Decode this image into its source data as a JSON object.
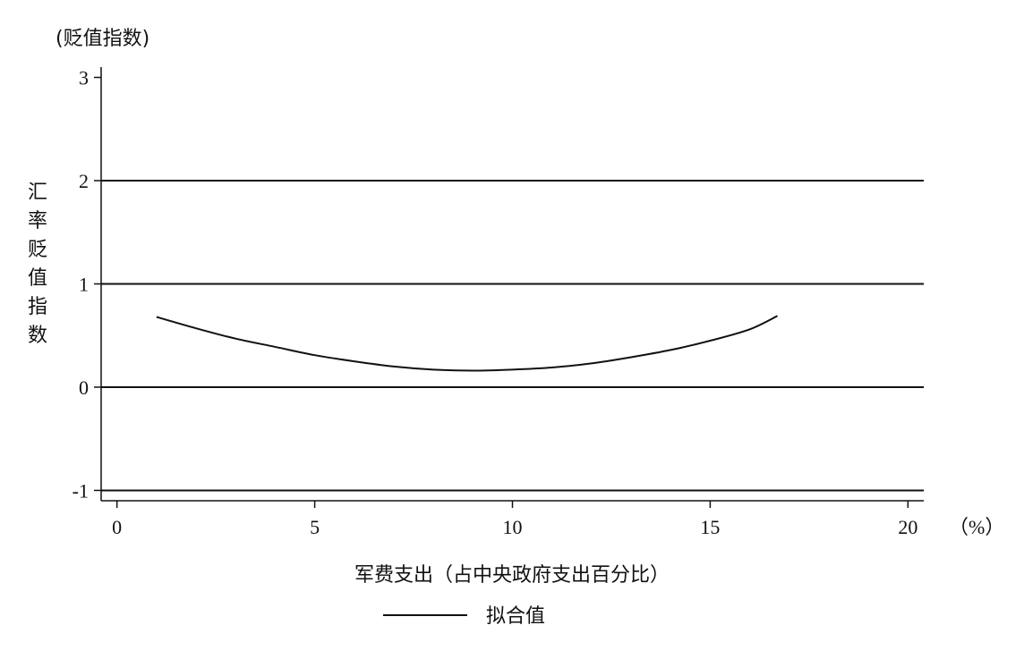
{
  "chart_data": {
    "type": "line",
    "y_unit_label": "(贬值指数)",
    "ylabel": "汇率贬值指数",
    "xlabel": "军费支出（占中央政府支出百分比）",
    "x_unit_label": "（%）",
    "xlim": [
      -0.4,
      20.4
    ],
    "ylim": [
      -1.1,
      3.1
    ],
    "x_ticks": [
      0,
      5,
      10,
      15,
      20
    ],
    "y_ticks": [
      -1,
      0,
      1,
      2,
      3
    ],
    "grid": "horizontal at y = -1, 0, 1, 2",
    "legend_position": "bottom-center",
    "series": [
      {
        "name": "拟合值",
        "color": "#111111",
        "x": [
          1.0,
          2.0,
          3.0,
          4.0,
          5.0,
          6.0,
          7.0,
          8.0,
          9.0,
          10.0,
          11.0,
          12.0,
          13.0,
          14.0,
          15.0,
          16.0,
          16.7
        ],
        "y": [
          0.68,
          0.57,
          0.47,
          0.39,
          0.31,
          0.25,
          0.2,
          0.17,
          0.16,
          0.17,
          0.19,
          0.23,
          0.29,
          0.36,
          0.45,
          0.56,
          0.69
        ]
      }
    ]
  }
}
